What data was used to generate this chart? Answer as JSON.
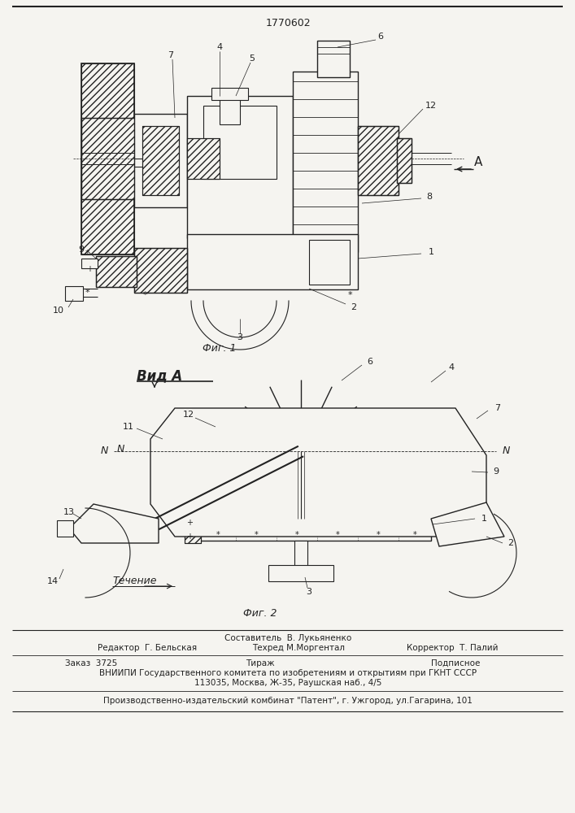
{
  "patent_number": "1770602",
  "fig1_caption": "Фиг. 1",
  "fig2_caption": "Фиг. 2",
  "view_label": "Вид А",
  "flow_label": "Течение",
  "bg_color": "#f5f4f0",
  "line_color": "#222222",
  "footer_lines": [
    "Составитель  В. Лукьяненко",
    "Редактор  Г. Бельская",
    "Техред М.Моргентал",
    "Корректор  Т. Палий",
    "Заказ  3725",
    "Тираж",
    "Подписное",
    "ВНИИПИ Государственного комитета по изобретениям и открытиям при ГКНТ СССР",
    "113035, Москва, Ж-35, Раушская наб., 4/5",
    "Производственно-издательский комбинат \"Патент\", г. Ужгород, ул.Гагарина, 101"
  ]
}
